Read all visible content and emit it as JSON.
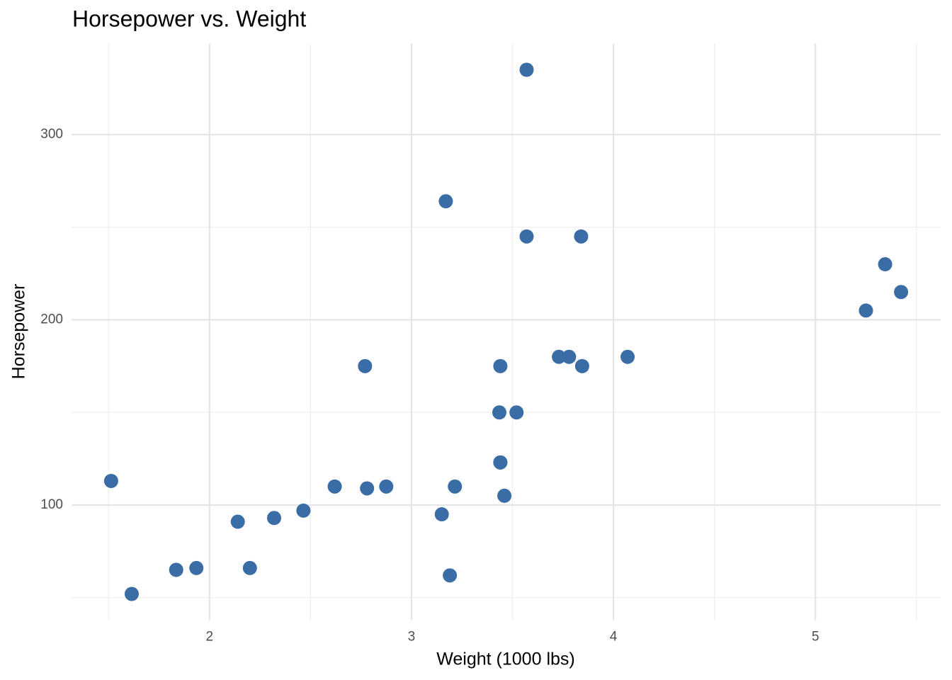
{
  "chart_data": {
    "type": "scatter",
    "title": "Horsepower vs. Weight",
    "x_label": "Weight (1000 lbs)",
    "y_label": "Horsepower",
    "x": [
      2.62,
      2.875,
      2.32,
      3.215,
      3.44,
      3.46,
      3.57,
      3.19,
      3.15,
      3.44,
      3.44,
      4.07,
      3.73,
      3.78,
      5.25,
      5.424,
      5.345,
      2.2,
      1.615,
      1.835,
      2.465,
      3.52,
      3.435,
      3.84,
      3.845,
      1.935,
      2.14,
      1.513,
      3.17,
      2.77,
      3.57,
      2.78
    ],
    "values": [
      110,
      110,
      93,
      110,
      175,
      105,
      245,
      62,
      95,
      123,
      123,
      180,
      180,
      180,
      205,
      215,
      230,
      66,
      52,
      65,
      97,
      150,
      150,
      245,
      175,
      66,
      91,
      113,
      264,
      175,
      335,
      109
    ],
    "color": "#3a6ca6",
    "xlim": [
      1.317,
      5.62
    ],
    "ylim": [
      37.85,
      349.15
    ],
    "xticks": [
      2,
      3,
      4,
      5
    ],
    "yticks": [
      100,
      200,
      300
    ],
    "minor_xticks": [
      1.5,
      2.5,
      3.5,
      4.5,
      5.5
    ],
    "minor_yticks": [
      50,
      150,
      250
    ],
    "grid": true
  }
}
